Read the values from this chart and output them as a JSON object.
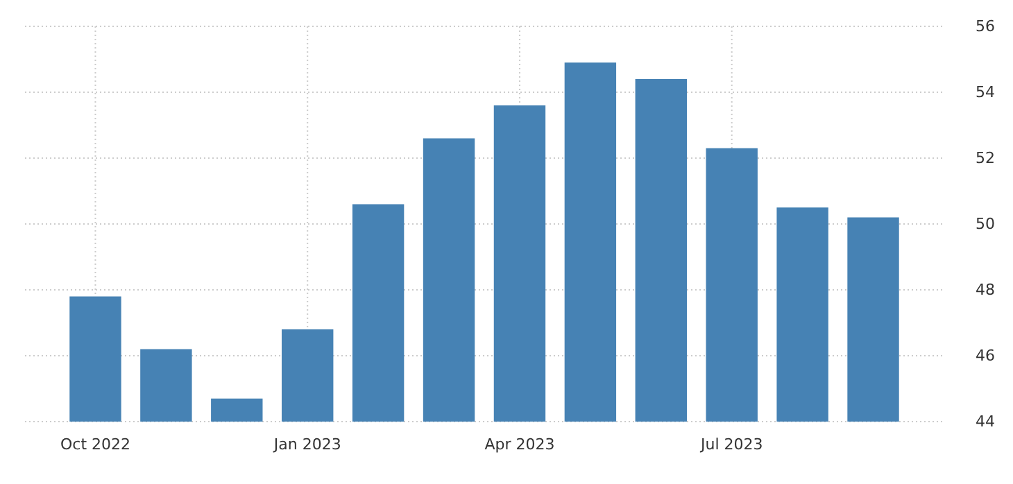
{
  "chart_data": {
    "type": "bar",
    "categories": [
      "Oct 2022",
      null,
      null,
      "Jan 2023",
      null,
      null,
      "Apr 2023",
      null,
      null,
      "Jul 2023",
      null,
      null
    ],
    "values": [
      47.8,
      46.2,
      44.7,
      46.8,
      50.6,
      52.6,
      53.6,
      54.9,
      54.4,
      52.3,
      50.5,
      50.2
    ],
    "color": "#4682b4",
    "ylim": [
      44,
      56
    ],
    "yticks": [
      44,
      46,
      48,
      50,
      52,
      54,
      56
    ],
    "grid": true
  }
}
